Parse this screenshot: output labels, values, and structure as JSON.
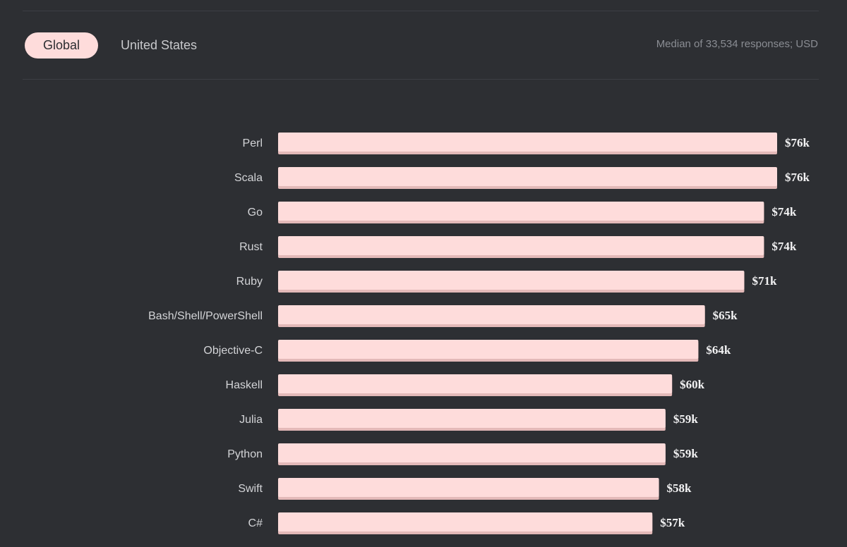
{
  "tabs": {
    "global": "Global",
    "united_states": "United States"
  },
  "subtitle": "Median of 33,534 responses; USD",
  "colors": {
    "background": "#2d2f33",
    "bar": "#fedcdb",
    "bar_shadow": "#e3b9b8"
  },
  "chart_data": {
    "type": "bar",
    "orientation": "horizontal",
    "title": "",
    "xlabel": "",
    "ylabel": "",
    "xlim": [
      0,
      80000
    ],
    "grid": false,
    "legend": "none",
    "categories": [
      "Perl",
      "Scala",
      "Go",
      "Rust",
      "Ruby",
      "Bash/Shell/PowerShell",
      "Objective-C",
      "Haskell",
      "Julia",
      "Python",
      "Swift",
      "C#"
    ],
    "values": [
      76000,
      76000,
      74000,
      74000,
      71000,
      65000,
      64000,
      60000,
      59000,
      59000,
      58000,
      57000
    ],
    "value_labels": [
      "$76k",
      "$76k",
      "$74k",
      "$74k",
      "$71k",
      "$65k",
      "$64k",
      "$60k",
      "$59k",
      "$59k",
      "$58k",
      "$57k"
    ]
  }
}
